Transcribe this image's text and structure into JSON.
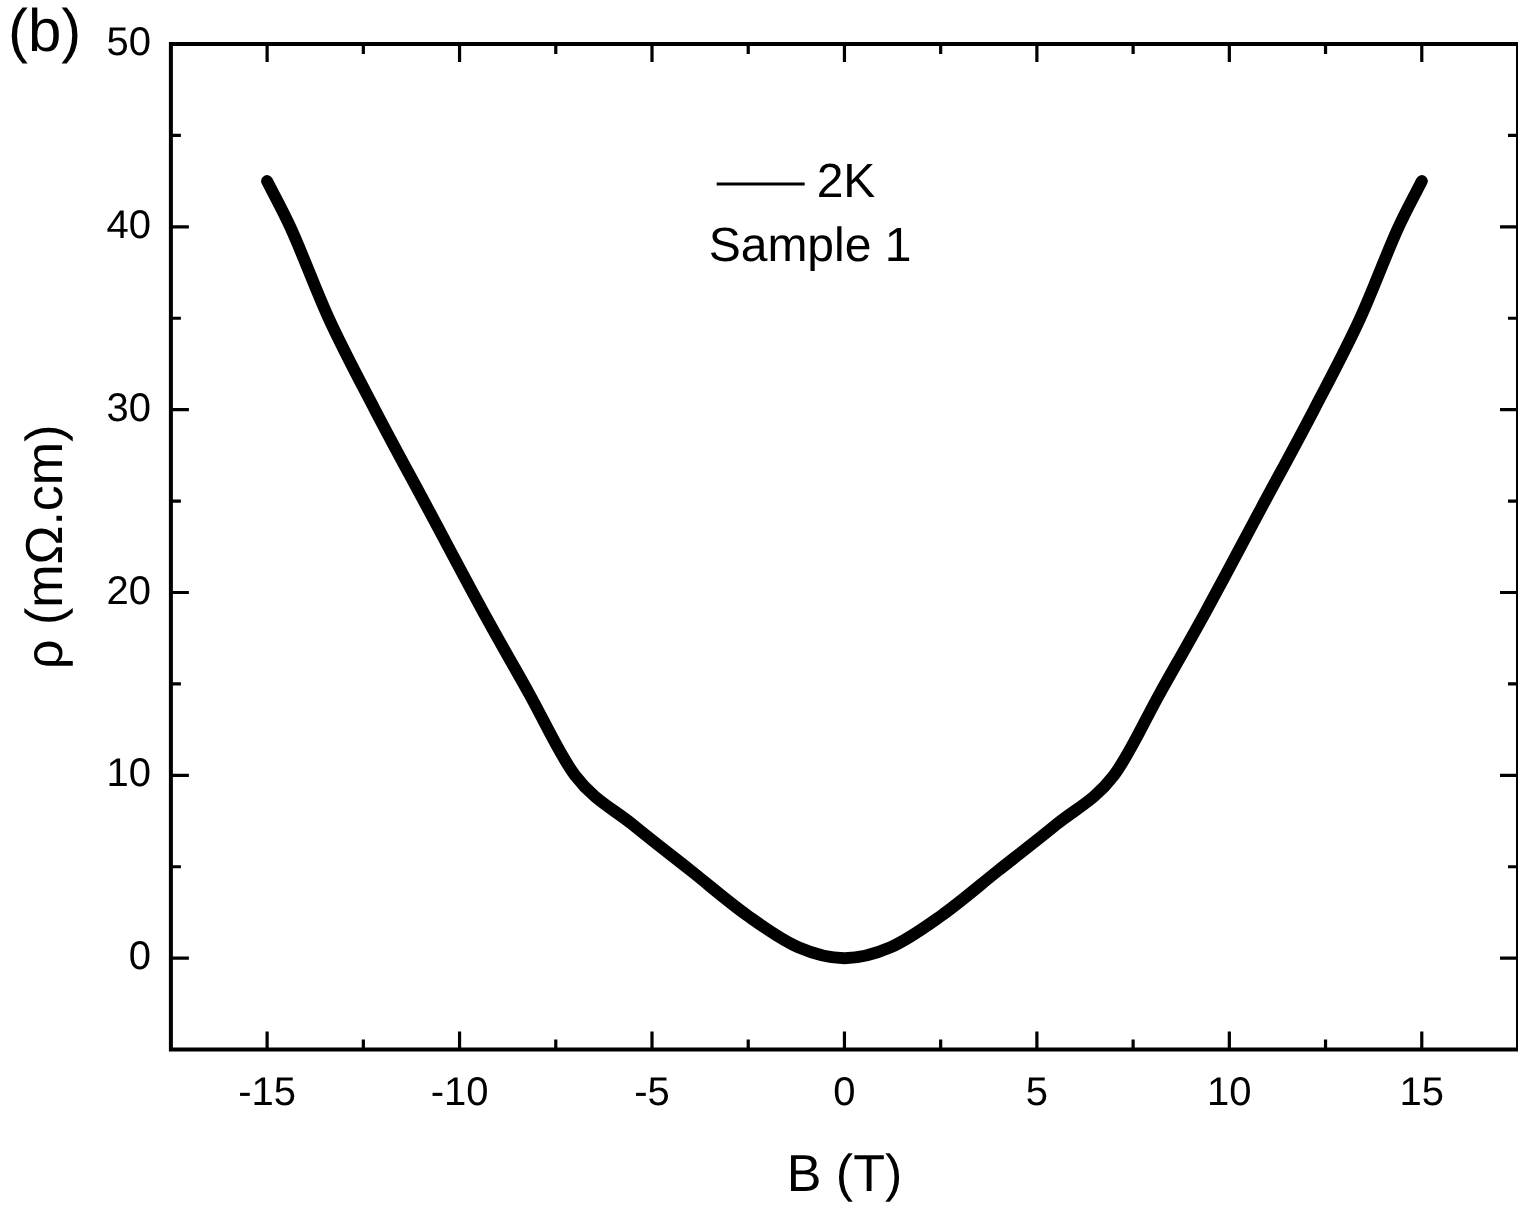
{
  "chart_data": {
    "type": "line",
    "title": "(b)",
    "xlabel": "B (T)",
    "ylabel": "ρ (mΩ.cm)",
    "x": [
      -15,
      -14.4,
      -13.4,
      -12.2,
      -10.8,
      -9.4,
      -8.2,
      -7,
      -5.5,
      -4,
      -2.5,
      -1.2,
      0,
      1.2,
      2.5,
      4,
      5.5,
      7,
      8.2,
      9.4,
      10.8,
      12.2,
      13.4,
      14.4,
      15
    ],
    "series": [
      {
        "name": "2K",
        "color": "#000000",
        "values": [
          42.5,
          40,
          35,
          30,
          24.5,
          19,
          14.5,
          10,
          7.3,
          4.8,
          2.3,
          0.6,
          0,
          0.6,
          2.3,
          4.8,
          7.3,
          10,
          14.5,
          19,
          24.5,
          30,
          35,
          40,
          42.5
        ]
      }
    ],
    "annotations": [
      "Sample 1"
    ],
    "xlim": [
      -17.5,
      17.5
    ],
    "xticks": [
      -15,
      -10,
      -5,
      0,
      5,
      10,
      15
    ],
    "ylim": [
      -5,
      50
    ],
    "yticks": [
      0,
      10,
      20,
      30,
      40,
      50
    ],
    "legend": "top",
    "marker": "none",
    "line_style": "solid",
    "grid": false
  }
}
